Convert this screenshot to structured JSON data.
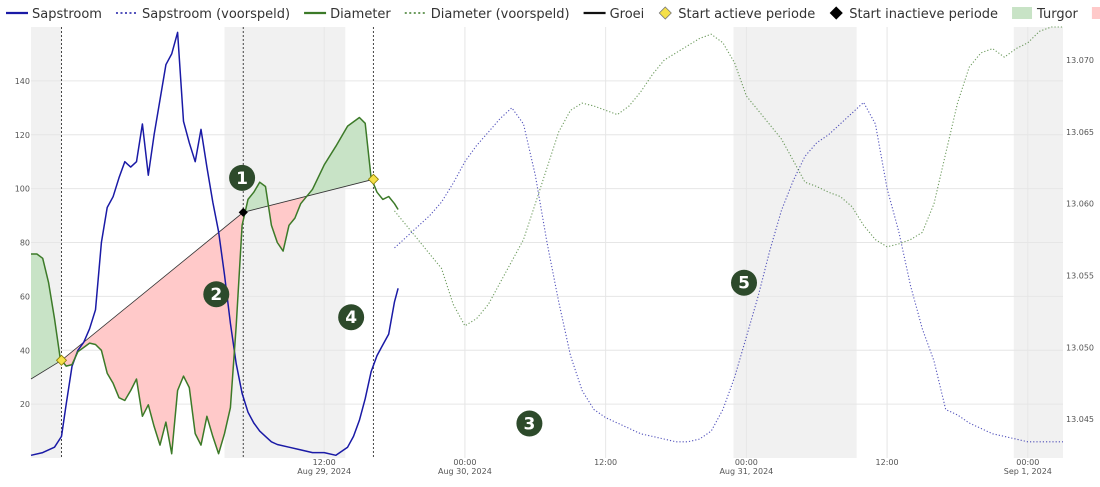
{
  "chart_data": {
    "type": "line",
    "legend": {
      "position": "top",
      "items": [
        {
          "key": "sap",
          "label": "Sapstroom",
          "color": "#1a1aa6",
          "style": "solid-line"
        },
        {
          "key": "sap_pred",
          "label": "Sapstroom (voorspeld)",
          "color": "#1a1aa6",
          "style": "dotted-line"
        },
        {
          "key": "dia",
          "label": "Diameter",
          "color": "#3c7a28",
          "style": "solid-line"
        },
        {
          "key": "dia_pred",
          "label": "Diameter (voorspeld)",
          "color": "#3c7a28",
          "style": "dotted-line"
        },
        {
          "key": "growth",
          "label": "Groei",
          "color": "#111111",
          "style": "solid-line"
        },
        {
          "key": "start_active",
          "label": "Start actieve periode",
          "color": "#f5e04a",
          "style": "diamond"
        },
        {
          "key": "start_inactive",
          "label": "Start inactieve periode",
          "color": "#000000",
          "style": "diamond"
        },
        {
          "key": "turgor",
          "label": "Turgor",
          "color": "#c8e3c6",
          "style": "area"
        },
        {
          "key": "stress",
          "label": "Stress",
          "color": "#ffc9c9",
          "style": "area"
        }
      ]
    },
    "x_axis": {
      "unit": "hours since Aug 29, 2024 00:00",
      "range": [
        -13,
        75
      ],
      "ticks": [
        {
          "x": 12,
          "line1": "12:00",
          "line2": "Aug 29, 2024"
        },
        {
          "x": 24,
          "line1": "00:00",
          "line2": "Aug 30, 2024"
        },
        {
          "x": 36,
          "line1": "12:00",
          "line2": ""
        },
        {
          "x": 48,
          "line1": "00:00",
          "line2": "Aug 31, 2024"
        },
        {
          "x": 60,
          "line1": "12:00",
          "line2": ""
        },
        {
          "x": 72,
          "line1": "00:00",
          "line2": "Sep 1, 2024"
        }
      ]
    },
    "y_left": {
      "label": "",
      "range": [
        0,
        160
      ],
      "ticks": [
        20,
        40,
        60,
        80,
        100,
        120,
        140
      ]
    },
    "y_right": {
      "label": "",
      "range": [
        13.0423,
        13.0723
      ],
      "ticks": [
        "13.045",
        "13.050",
        "13.055",
        "13.060",
        "13.065",
        "13.070"
      ]
    },
    "shaded_periods": [
      [
        -13,
        -10.4
      ],
      [
        3.5,
        13.8
      ],
      [
        46.9,
        57.4
      ],
      [
        70.8,
        75
      ]
    ],
    "period_markers": [
      {
        "x": -10.4,
        "type": "active",
        "diameter": 13.0491
      },
      {
        "x": 5.1,
        "type": "inactive",
        "diameter": 13.0594
      },
      {
        "x": 16.2,
        "type": "active",
        "diameter": 13.0617
      }
    ],
    "growth_line": {
      "x": [
        -13,
        -10.4,
        5.1,
        16.2
      ],
      "y": [
        13.0478,
        13.0491,
        13.0594,
        13.0617
      ]
    },
    "series": [
      {
        "name": "Sapstroom",
        "key": "sap",
        "axis": "left",
        "predicted": false,
        "x": [
          -13,
          -12,
          -11,
          -10.4,
          -10,
          -9.5,
          -9,
          -8.5,
          -8,
          -7.5,
          -7,
          -6.5,
          -6,
          -5.5,
          -5,
          -4.5,
          -4,
          -3.5,
          -3,
          -2.5,
          -2,
          -1.5,
          -1,
          -0.5,
          0,
          0.5,
          1,
          1.5,
          2,
          2.5,
          3,
          3.5,
          4,
          4.5,
          5,
          5.5,
          6,
          6.5,
          7,
          7.5,
          8,
          9,
          10,
          11,
          12,
          13,
          14,
          14.5,
          15,
          15.5,
          16,
          16.5,
          17,
          17.5,
          18,
          18.3
        ],
        "y": [
          1,
          2,
          4,
          8,
          20,
          34,
          40,
          43,
          48,
          55,
          80,
          93,
          97,
          104,
          110,
          108,
          110,
          124,
          105,
          120,
          133,
          146,
          150,
          158,
          125,
          117,
          110,
          122,
          108,
          95,
          84,
          68,
          50,
          35,
          24,
          17,
          13,
          10,
          8,
          6,
          5,
          4,
          3,
          2,
          2,
          1,
          4,
          8,
          14,
          22,
          32,
          38,
          42,
          46,
          58,
          63
        ]
      },
      {
        "name": "Sapstroom (voorspeld)",
        "key": "sap_pred",
        "axis": "left",
        "predicted": true,
        "x": [
          18,
          19,
          20,
          21,
          22,
          23,
          24,
          25,
          26,
          27,
          28,
          29,
          30,
          31,
          32,
          33,
          34,
          35,
          36,
          37,
          38,
          39,
          40,
          41,
          42,
          43,
          44,
          45,
          46,
          47,
          48,
          49,
          50,
          51,
          52,
          53,
          54,
          55,
          56,
          57,
          58,
          59,
          60,
          61,
          62,
          63,
          64,
          65,
          66,
          67,
          68,
          69,
          70,
          71,
          72,
          73,
          74,
          75
        ],
        "y": [
          78,
          82,
          86,
          90,
          95,
          102,
          110,
          116,
          121,
          126,
          130,
          124,
          105,
          80,
          58,
          38,
          25,
          18,
          15,
          13,
          11,
          9,
          8,
          7,
          6,
          6,
          7,
          10,
          18,
          30,
          45,
          60,
          77,
          92,
          103,
          112,
          117,
          120,
          124,
          128,
          132,
          124,
          100,
          84,
          64,
          48,
          36,
          18,
          16,
          13,
          11,
          9,
          8,
          7,
          6,
          6,
          6,
          6
        ]
      },
      {
        "name": "Diameter",
        "key": "dia",
        "axis": "right",
        "predicted": false,
        "x": [
          -13,
          -12.5,
          -12,
          -11.5,
          -11,
          -10.5,
          -10,
          -9.5,
          -9,
          -8.5,
          -8,
          -7.5,
          -7,
          -6.5,
          -6,
          -5.5,
          -5,
          -4.5,
          -4,
          -3.5,
          -3,
          -2.5,
          -2,
          -1.5,
          -1,
          -0.5,
          0,
          0.5,
          1,
          1.5,
          2,
          2.5,
          3,
          3.5,
          4,
          4.5,
          5,
          5.5,
          6,
          6.5,
          7,
          7.5,
          8,
          8.5,
          9,
          9.5,
          10,
          11,
          12,
          13,
          14,
          15,
          15.5,
          16,
          16.5,
          17,
          17.5,
          18,
          18.3
        ],
        "y": [
          13.0565,
          13.0565,
          13.0562,
          13.0545,
          13.052,
          13.0492,
          13.0487,
          13.0488,
          13.0497,
          13.05,
          13.0503,
          13.0502,
          13.0498,
          13.0482,
          13.0475,
          13.0465,
          13.0463,
          13.047,
          13.0478,
          13.0452,
          13.046,
          13.0445,
          13.0432,
          13.0448,
          13.0426,
          13.047,
          13.048,
          13.0472,
          13.044,
          13.0432,
          13.0452,
          13.0438,
          13.0426,
          13.044,
          13.0458,
          13.0515,
          13.0585,
          13.0603,
          13.0608,
          13.0615,
          13.0612,
          13.0585,
          13.0573,
          13.0567,
          13.0585,
          13.059,
          13.06,
          13.061,
          13.0627,
          13.064,
          13.0654,
          13.066,
          13.0656,
          13.0618,
          13.0608,
          13.0603,
          13.0605,
          13.06,
          13.0596
        ]
      },
      {
        "name": "Diameter (voorspeld)",
        "key": "dia_pred",
        "axis": "right",
        "predicted": true,
        "x": [
          18,
          19,
          20,
          21,
          22,
          23,
          24,
          25,
          26,
          27,
          28,
          29,
          30,
          31,
          32,
          33,
          34,
          35,
          36,
          37,
          38,
          39,
          40,
          41,
          42,
          43,
          44,
          45,
          46,
          47,
          48,
          49,
          50,
          51,
          52,
          53,
          54,
          55,
          56,
          57,
          58,
          59,
          60,
          61,
          62,
          63,
          64,
          65,
          66,
          67,
          68,
          69,
          70,
          71,
          72,
          73,
          74,
          75
        ],
        "y": [
          13.0595,
          13.0585,
          13.0575,
          13.0565,
          13.0555,
          13.053,
          13.0515,
          13.052,
          13.053,
          13.0545,
          13.056,
          13.0575,
          13.06,
          13.0625,
          13.065,
          13.0665,
          13.067,
          13.0668,
          13.0665,
          13.0662,
          13.0668,
          13.0678,
          13.069,
          13.07,
          13.0705,
          13.071,
          13.0715,
          13.0718,
          13.0712,
          13.0698,
          13.0675,
          13.0665,
          13.0655,
          13.0645,
          13.063,
          13.0615,
          13.0612,
          13.0608,
          13.0605,
          13.0598,
          13.0585,
          13.0575,
          13.057,
          13.0572,
          13.0575,
          13.058,
          13.06,
          13.0635,
          13.067,
          13.0695,
          13.0705,
          13.0708,
          13.0702,
          13.0708,
          13.0712,
          13.072,
          13.0723,
          13.0723
        ]
      }
    ],
    "annotations": [
      {
        "label": "1",
        "x": 5.0,
        "y": 13.0618
      },
      {
        "label": "2",
        "x": 2.8,
        "y": 13.0537
      },
      {
        "label": "3",
        "x": 29.5,
        "y": 13.0447
      },
      {
        "label": "4",
        "x": 14.3,
        "y": 13.0521
      },
      {
        "label": "5",
        "x": 47.8,
        "y": 13.0545
      }
    ]
  }
}
